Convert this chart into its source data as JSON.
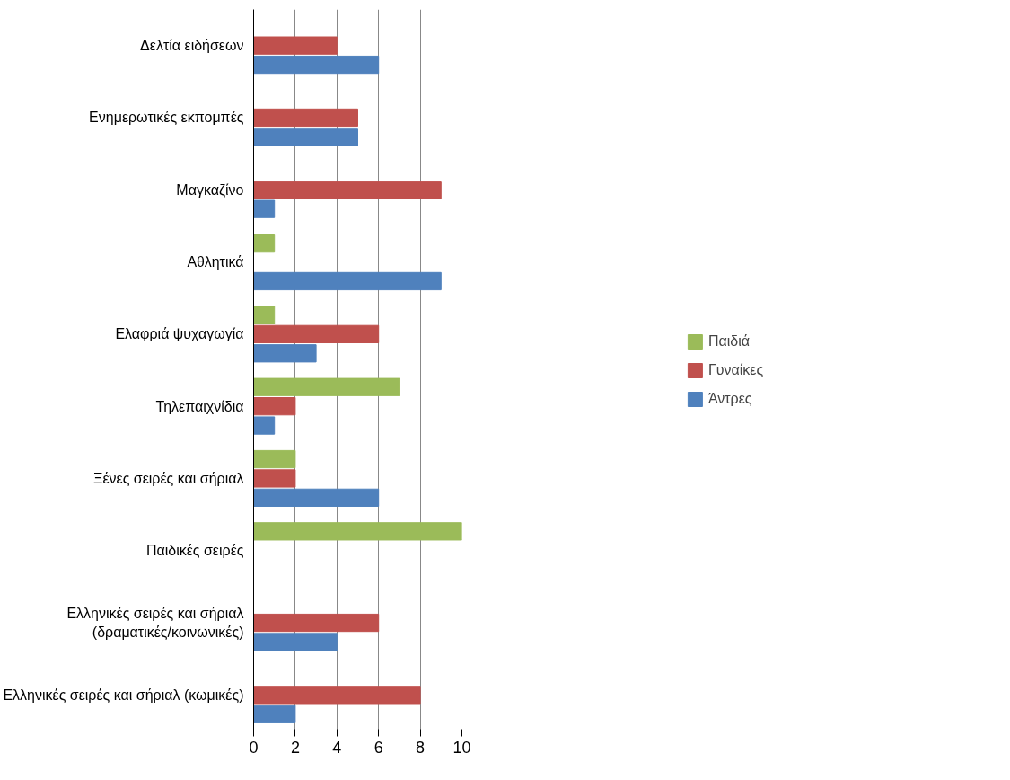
{
  "chart_data": {
    "type": "bar",
    "orientation": "horizontal",
    "categories": [
      "Δελτία ειδήσεων",
      "Ενημερωτικές εκπομπές",
      "Μαγκαζίνο",
      "Αθλητικά",
      "Ελαφριά ψυχαγωγία",
      "Τηλεπαιχνίδια",
      "Ξένες σειρές και σήριαλ",
      "Παιδικές σειρές",
      "Ελληνικές σειρές και σήριαλ\n(δραματικές/κοινωνικές)",
      "Ελληνικές σειρές και σήριαλ (κωμικές)"
    ],
    "series": [
      {
        "name": "Παιδιά",
        "color": "#9bbb59",
        "values": [
          0,
          0,
          0,
          1,
          1,
          7,
          2,
          10,
          0,
          0
        ]
      },
      {
        "name": "Γυναίκες",
        "color": "#c0504d",
        "values": [
          4,
          5,
          9,
          0,
          6,
          2,
          2,
          0,
          6,
          8
        ]
      },
      {
        "name": "Άντρες",
        "color": "#4f81bd",
        "values": [
          6,
          5,
          1,
          9,
          3,
          1,
          6,
          0,
          4,
          2
        ]
      }
    ],
    "xlim": [
      0,
      10
    ],
    "xticks": [
      0,
      2,
      4,
      6,
      8,
      10
    ],
    "grid": "x",
    "legend": "right"
  }
}
